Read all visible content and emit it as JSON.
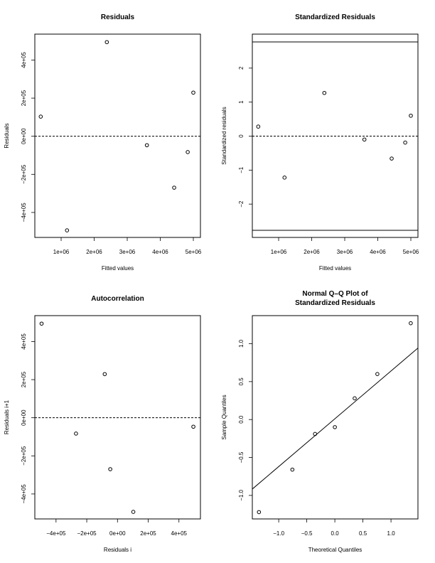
{
  "chart_data": [
    {
      "type": "scatter",
      "title": [
        "Residuals"
      ],
      "xlabel": "Fitted values",
      "ylabel": "Residuals",
      "xlim": [
        204000,
        5215000
      ],
      "ylim": [
        -531000,
        536000
      ],
      "xticks": [
        1000000,
        2000000,
        3000000,
        4000000,
        5000000
      ],
      "xtick_labels": [
        "1e+06",
        "2e+06",
        "3e+06",
        "4e+06",
        "5e+06"
      ],
      "yticks": [
        -400000,
        -200000,
        0,
        200000,
        400000
      ],
      "ytick_labels": [
        "−4e+05",
        "−2e+05",
        "0e+00",
        "2e+05",
        "4e+05"
      ],
      "x": [
        383000,
        1178000,
        2383000,
        3595000,
        4420000,
        4830000,
        5000000
      ],
      "y": [
        103000,
        -494000,
        494000,
        -47000,
        -270000,
        -83000,
        229000
      ],
      "hlines": [
        {
          "y": 0,
          "style": "dashed"
        }
      ]
    },
    {
      "type": "scatter",
      "title": [
        "Standardized Residuals"
      ],
      "xlabel": "Fitted values",
      "ylabel": "Standardized residuals",
      "xlim": [
        204000,
        5215000
      ],
      "ylim": [
        -2.98,
        3.0
      ],
      "xticks": [
        1000000,
        2000000,
        3000000,
        4000000,
        5000000
      ],
      "xtick_labels": [
        "1e+06",
        "2e+06",
        "3e+06",
        "4e+06",
        "5e+06"
      ],
      "yticks": [
        -2,
        -1,
        0,
        1,
        2
      ],
      "ytick_labels": [
        "−2",
        "−1",
        "0",
        "1",
        "2"
      ],
      "x": [
        383000,
        1178000,
        2383000,
        3595000,
        4420000,
        4830000,
        5000000
      ],
      "y": [
        0.28,
        -1.22,
        1.27,
        -0.1,
        -0.66,
        -0.19,
        0.6
      ],
      "hlines": [
        {
          "y": 0,
          "style": "dashed"
        },
        {
          "y": 2.77,
          "style": "solid"
        },
        {
          "y": -2.77,
          "style": "solid"
        }
      ]
    },
    {
      "type": "scatter",
      "title": [
        "Autocorrelation"
      ],
      "xlabel": "Residuals i",
      "ylabel": "Residuals i+1",
      "xlim": [
        -538000,
        540000
      ],
      "ylim": [
        -531000,
        536000
      ],
      "xticks": [
        -400000,
        -200000,
        0,
        200000,
        400000
      ],
      "xtick_labels": [
        "−4e+05",
        "−2e+05",
        "0e+00",
        "2e+05",
        "4e+05"
      ],
      "yticks": [
        -400000,
        -200000,
        0,
        200000,
        400000
      ],
      "ytick_labels": [
        "−4e+05",
        "−2e+05",
        "0e+00",
        "2e+05",
        "4e+05"
      ],
      "x": [
        103000,
        -494000,
        494000,
        -47000,
        -270000,
        -83000
      ],
      "y": [
        -494000,
        494000,
        -47000,
        -270000,
        -83000,
        229000
      ],
      "hlines": [
        {
          "y": 0,
          "style": "dashed"
        }
      ]
    },
    {
      "type": "scatter",
      "title": [
        "Normal Q–Q Plot of",
        "Standardized Residuals"
      ],
      "xlabel": "Theoretical Quantiles",
      "ylabel": "Sample Quantiles",
      "xlim": [
        -1.47,
        1.48
      ],
      "ylim": [
        -1.31,
        1.37
      ],
      "xticks": [
        -1.0,
        -0.5,
        0.0,
        0.5,
        1.0
      ],
      "xtick_labels": [
        "−1.0",
        "−0.5",
        "0.0",
        "0.5",
        "1.0"
      ],
      "yticks": [
        -1.0,
        -0.5,
        0.0,
        0.5,
        1.0
      ],
      "ytick_labels": [
        "−1.0",
        "−0.5",
        "0.0",
        "0.5",
        "1.0"
      ],
      "x": [
        -1.352,
        -0.757,
        -0.353,
        0.0,
        0.353,
        0.757,
        1.352
      ],
      "y": [
        -1.22,
        -0.66,
        -0.19,
        -0.1,
        0.28,
        0.6,
        1.27
      ],
      "abline": {
        "intercept": 0.01,
        "slope": 0.63
      }
    }
  ]
}
